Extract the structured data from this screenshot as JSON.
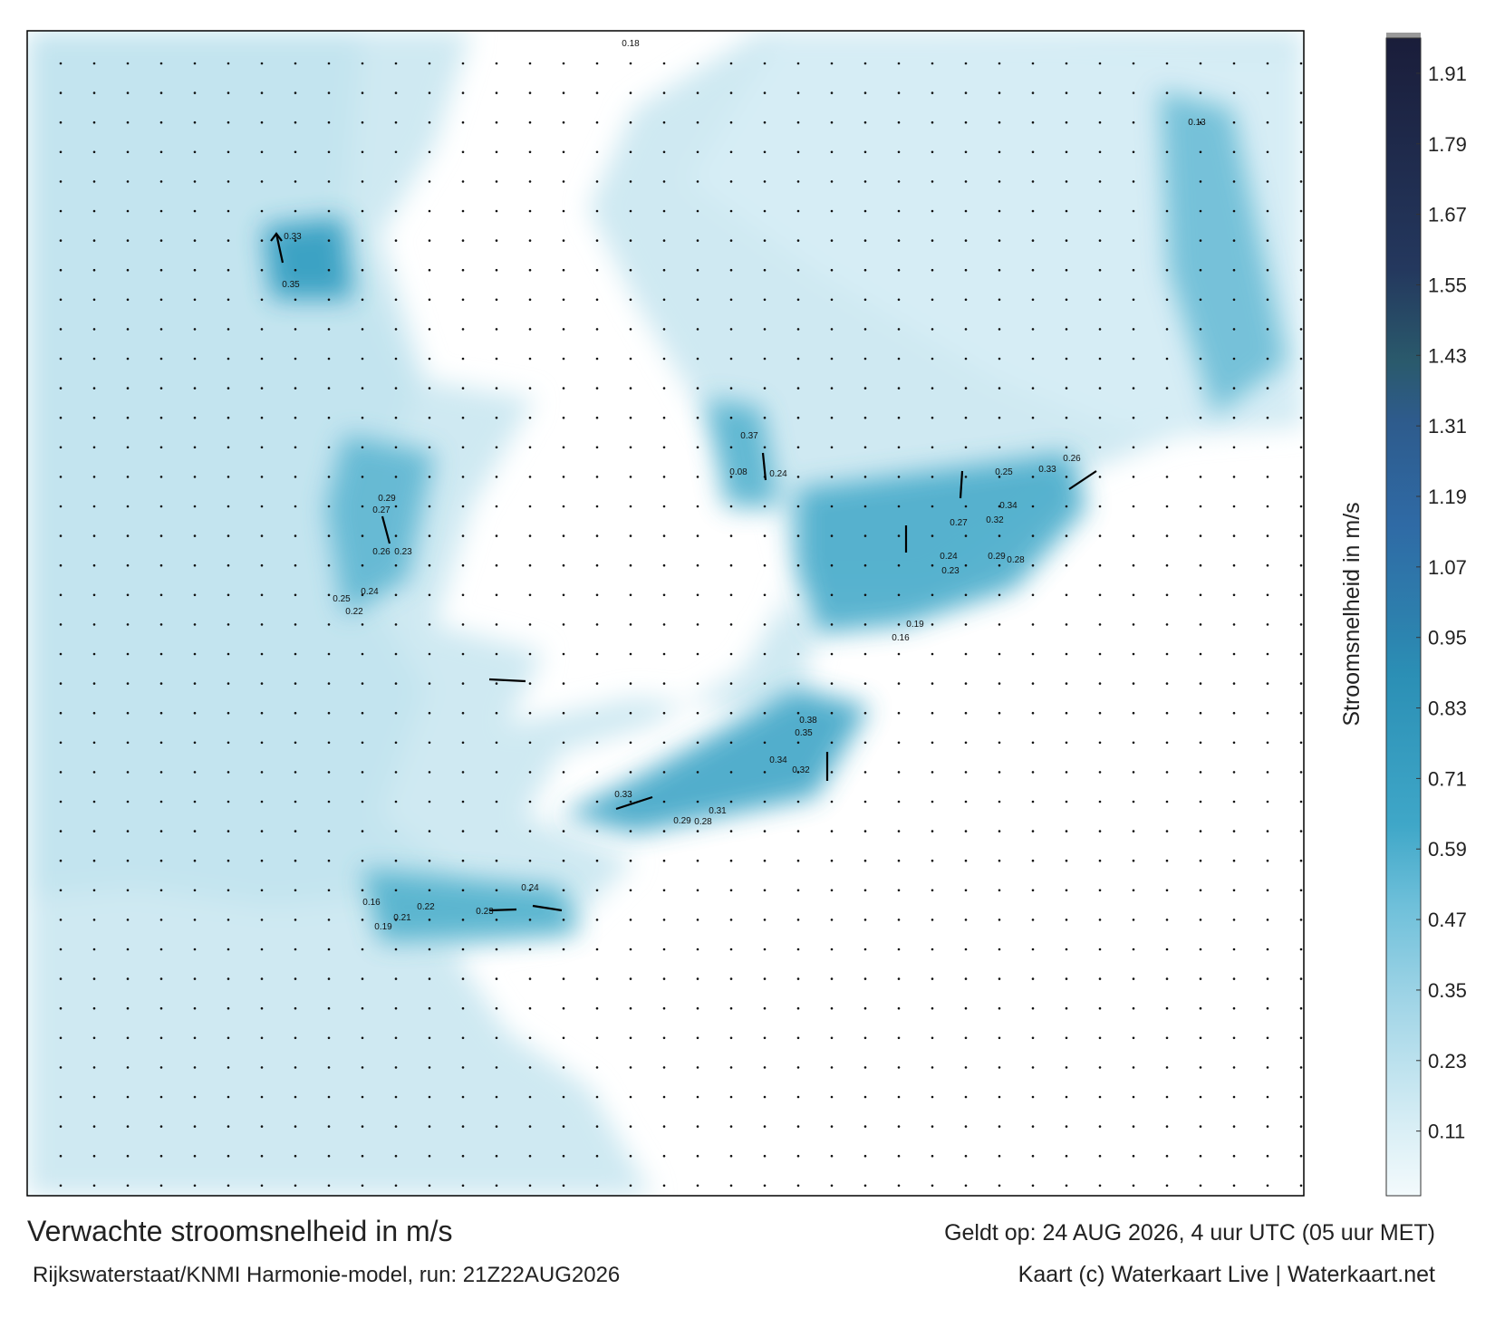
{
  "map": {
    "title": "Verwachte stroomsnelheid in m/s",
    "subtitle": "Rijkswaterstaat/KNMI Harmonie-model, run: 21Z22AUG2026",
    "valid_time": "Geldt op: 24 AUG 2026, 4 uur UTC (05 uur MET)",
    "credit": "Kaart (c) Waterkaart Live | Waterkaart.net",
    "colorbar": {
      "label": "Stroomsnelheid in m/s",
      "lim": [
        0,
        1.97
      ],
      "ticks": [
        0.11,
        0.23,
        0.35,
        0.47,
        0.59,
        0.71,
        0.83,
        0.95,
        1.07,
        1.19,
        1.31,
        1.43,
        1.55,
        1.67,
        1.79,
        1.91
      ]
    },
    "current_labels": [
      0.33,
      0.35,
      0.37,
      0.24,
      0.27,
      0.32,
      0.34,
      0.33,
      0.26,
      0.25,
      0.29,
      0.28,
      0.24,
      0.23,
      0.19,
      0.16,
      0.38,
      0.35,
      0.34,
      0.32,
      0.33,
      0.31,
      0.29,
      0.28,
      0.24,
      0.23,
      0.22,
      0.21,
      0.19,
      0.16,
      0.26,
      0.23,
      0.25,
      0.24,
      0.22,
      0.29,
      0.27,
      0.08,
      0.13,
      0.18
    ]
  }
}
